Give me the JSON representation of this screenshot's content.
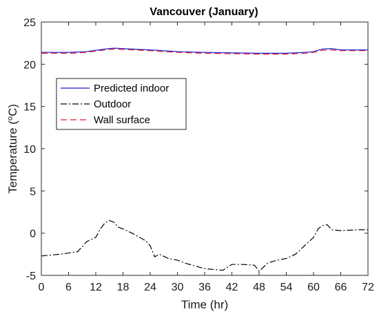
{
  "chart_data": {
    "type": "line",
    "title": "Vancouver (January)",
    "xlabel": "Time (hr)",
    "ylabel": "Temperature (°C)",
    "ylabel_parts": {
      "before": "Temperature (",
      "sup": "o",
      "after": "C)"
    },
    "xlim": [
      0,
      72
    ],
    "ylim": [
      -5,
      25
    ],
    "xticks": [
      0,
      6,
      12,
      18,
      24,
      30,
      36,
      42,
      48,
      54,
      60,
      66,
      72
    ],
    "yticks": [
      -5,
      0,
      5,
      10,
      15,
      20,
      25
    ],
    "grid": false,
    "legend_position": "upper-left",
    "series": [
      {
        "name": "Predicted indoor",
        "color": "#1f1fc8",
        "dash": "solid",
        "x": [
          0,
          6,
          10,
          14,
          16,
          18,
          24,
          30,
          36,
          42,
          48,
          54,
          58,
          60,
          62,
          64,
          66,
          72
        ],
        "y": [
          21.4,
          21.4,
          21.5,
          21.8,
          21.9,
          21.85,
          21.7,
          21.5,
          21.4,
          21.35,
          21.3,
          21.3,
          21.4,
          21.5,
          21.8,
          21.85,
          21.7,
          21.7
        ]
      },
      {
        "name": "Outdoor",
        "color": "#000000",
        "dash": "dashdot",
        "x": [
          0,
          4,
          8,
          10,
          12,
          13,
          14,
          15,
          16,
          17,
          18,
          20,
          22,
          23,
          24,
          25,
          26,
          28,
          30,
          32,
          34,
          36,
          38,
          40,
          42,
          44,
          46,
          47,
          48,
          50,
          52,
          54,
          56,
          58,
          59,
          60,
          61,
          62,
          63,
          64,
          66,
          68,
          70,
          72
        ],
        "y": [
          -2.7,
          -2.5,
          -2.2,
          -1.0,
          -0.5,
          0.5,
          1.2,
          1.5,
          1.3,
          0.7,
          0.5,
          0.0,
          -0.6,
          -0.9,
          -1.5,
          -2.8,
          -2.5,
          -3.0,
          -3.2,
          -3.6,
          -3.9,
          -4.2,
          -4.3,
          -4.4,
          -3.7,
          -3.7,
          -3.75,
          -3.8,
          -4.5,
          -3.5,
          -3.2,
          -3.0,
          -2.5,
          -1.5,
          -1.0,
          -0.5,
          0.5,
          0.9,
          1.0,
          0.4,
          0.3,
          0.35,
          0.4,
          0.4
        ]
      },
      {
        "name": "Wall surface",
        "color": "#e8192c",
        "dash": "dashed",
        "x": [
          0,
          6,
          10,
          14,
          16,
          18,
          24,
          30,
          36,
          42,
          48,
          54,
          58,
          60,
          62,
          64,
          66,
          72
        ],
        "y": [
          21.3,
          21.3,
          21.4,
          21.7,
          21.8,
          21.75,
          21.6,
          21.4,
          21.3,
          21.25,
          21.2,
          21.2,
          21.3,
          21.4,
          21.65,
          21.7,
          21.6,
          21.6
        ]
      }
    ]
  }
}
